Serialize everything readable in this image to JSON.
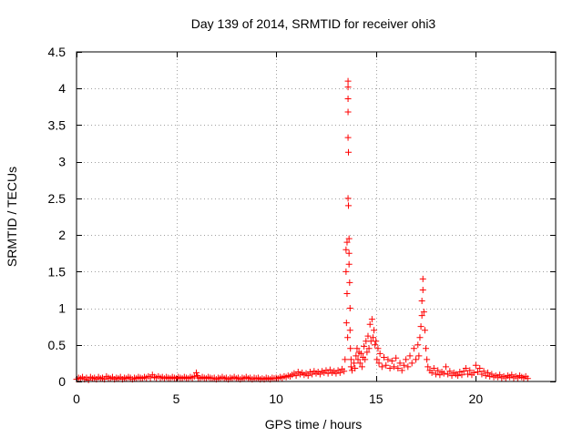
{
  "chart_data": {
    "type": "scatter",
    "title": "Day 139 of 2014, SRMTID for receiver ohi3",
    "xlabel": "GPS time / hours",
    "ylabel": "SRMTID / TECUs",
    "xlim": [
      0,
      24
    ],
    "ylim": [
      0,
      4.5
    ],
    "x_ticks": [
      0,
      5,
      10,
      15,
      20
    ],
    "x_tick_labels": [
      "0",
      "5",
      "10",
      "15",
      "20"
    ],
    "y_ticks": [
      0,
      0.5,
      1,
      1.5,
      2,
      2.5,
      3,
      3.5,
      4,
      4.5
    ],
    "y_tick_labels": [
      "0",
      "0.5",
      "1",
      "1.5",
      "2",
      "2.5",
      "3",
      "3.5",
      "4",
      "4.5"
    ],
    "grid": true,
    "marker": "+",
    "series_color": "#ff0000",
    "series": [
      {
        "name": "SRMTID",
        "points": [
          [
            0.0,
            0.03
          ],
          [
            0.1,
            0.05
          ],
          [
            0.2,
            0.04
          ],
          [
            0.3,
            0.06
          ],
          [
            0.4,
            0.03
          ],
          [
            0.5,
            0.05
          ],
          [
            0.6,
            0.02
          ],
          [
            0.7,
            0.06
          ],
          [
            0.8,
            0.04
          ],
          [
            0.9,
            0.05
          ],
          [
            1.0,
            0.03
          ],
          [
            1.1,
            0.06
          ],
          [
            1.2,
            0.04
          ],
          [
            1.3,
            0.05
          ],
          [
            1.4,
            0.03
          ],
          [
            1.5,
            0.07
          ],
          [
            1.6,
            0.05
          ],
          [
            1.7,
            0.04
          ],
          [
            1.8,
            0.06
          ],
          [
            1.9,
            0.03
          ],
          [
            2.0,
            0.05
          ],
          [
            2.1,
            0.04
          ],
          [
            2.2,
            0.06
          ],
          [
            2.3,
            0.03
          ],
          [
            2.4,
            0.05
          ],
          [
            2.5,
            0.04
          ],
          [
            2.6,
            0.06
          ],
          [
            2.7,
            0.05
          ],
          [
            2.8,
            0.03
          ],
          [
            2.9,
            0.05
          ],
          [
            3.0,
            0.04
          ],
          [
            3.1,
            0.06
          ],
          [
            3.2,
            0.05
          ],
          [
            3.3,
            0.04
          ],
          [
            3.4,
            0.06
          ],
          [
            3.5,
            0.05
          ],
          [
            3.6,
            0.07
          ],
          [
            3.7,
            0.05
          ],
          [
            3.8,
            0.09
          ],
          [
            3.9,
            0.06
          ],
          [
            4.0,
            0.05
          ],
          [
            4.1,
            0.07
          ],
          [
            4.2,
            0.05
          ],
          [
            4.3,
            0.06
          ],
          [
            4.4,
            0.04
          ],
          [
            4.5,
            0.06
          ],
          [
            4.6,
            0.05
          ],
          [
            4.7,
            0.04
          ],
          [
            4.8,
            0.06
          ],
          [
            4.9,
            0.05
          ],
          [
            5.0,
            0.04
          ],
          [
            5.1,
            0.06
          ],
          [
            5.2,
            0.05
          ],
          [
            5.3,
            0.04
          ],
          [
            5.4,
            0.06
          ],
          [
            5.5,
            0.05
          ],
          [
            5.6,
            0.04
          ],
          [
            5.7,
            0.06
          ],
          [
            5.8,
            0.05
          ],
          [
            5.9,
            0.07
          ],
          [
            6.0,
            0.12
          ],
          [
            6.05,
            0.08
          ],
          [
            6.1,
            0.05
          ],
          [
            6.2,
            0.04
          ],
          [
            6.3,
            0.06
          ],
          [
            6.4,
            0.05
          ],
          [
            6.5,
            0.04
          ],
          [
            6.6,
            0.06
          ],
          [
            6.7,
            0.05
          ],
          [
            6.8,
            0.04
          ],
          [
            6.9,
            0.05
          ],
          [
            7.0,
            0.03
          ],
          [
            7.1,
            0.05
          ],
          [
            7.2,
            0.04
          ],
          [
            7.3,
            0.06
          ],
          [
            7.4,
            0.04
          ],
          [
            7.5,
            0.05
          ],
          [
            7.6,
            0.03
          ],
          [
            7.7,
            0.05
          ],
          [
            7.8,
            0.04
          ],
          [
            7.9,
            0.06
          ],
          [
            8.0,
            0.04
          ],
          [
            8.1,
            0.05
          ],
          [
            8.2,
            0.03
          ],
          [
            8.3,
            0.05
          ],
          [
            8.4,
            0.04
          ],
          [
            8.5,
            0.06
          ],
          [
            8.6,
            0.04
          ],
          [
            8.7,
            0.05
          ],
          [
            8.8,
            0.03
          ],
          [
            8.9,
            0.05
          ],
          [
            9.0,
            0.04
          ],
          [
            9.1,
            0.05
          ],
          [
            9.2,
            0.03
          ],
          [
            9.3,
            0.04
          ],
          [
            9.4,
            0.03
          ],
          [
            9.5,
            0.05
          ],
          [
            9.6,
            0.04
          ],
          [
            9.7,
            0.03
          ],
          [
            9.8,
            0.05
          ],
          [
            9.9,
            0.04
          ],
          [
            10.0,
            0.05
          ],
          [
            10.1,
            0.04
          ],
          [
            10.2,
            0.06
          ],
          [
            10.3,
            0.05
          ],
          [
            10.4,
            0.07
          ],
          [
            10.5,
            0.06
          ],
          [
            10.6,
            0.08
          ],
          [
            10.7,
            0.07
          ],
          [
            10.8,
            0.09
          ],
          [
            10.9,
            0.11
          ],
          [
            11.0,
            0.08
          ],
          [
            11.1,
            0.13
          ],
          [
            11.2,
            0.1
          ],
          [
            11.3,
            0.12
          ],
          [
            11.4,
            0.09
          ],
          [
            11.5,
            0.11
          ],
          [
            11.6,
            0.08
          ],
          [
            11.7,
            0.13
          ],
          [
            11.8,
            0.1
          ],
          [
            11.9,
            0.14
          ],
          [
            12.0,
            0.11
          ],
          [
            12.1,
            0.13
          ],
          [
            12.2,
            0.1
          ],
          [
            12.3,
            0.14
          ],
          [
            12.4,
            0.12
          ],
          [
            12.5,
            0.15
          ],
          [
            12.6,
            0.11
          ],
          [
            12.7,
            0.16
          ],
          [
            12.8,
            0.12
          ],
          [
            12.9,
            0.14
          ],
          [
            13.0,
            0.11
          ],
          [
            13.1,
            0.15
          ],
          [
            13.2,
            0.12
          ],
          [
            13.3,
            0.17
          ],
          [
            13.4,
            0.14
          ],
          [
            13.45,
            0.3
          ],
          [
            13.5,
            1.8
          ],
          [
            13.5,
            1.5
          ],
          [
            13.52,
            0.8
          ],
          [
            13.55,
            1.9
          ],
          [
            13.55,
            1.2
          ],
          [
            13.58,
            0.6
          ],
          [
            13.6,
            4.1
          ],
          [
            13.6,
            4.02
          ],
          [
            13.6,
            3.86
          ],
          [
            13.6,
            3.68
          ],
          [
            13.6,
            3.33
          ],
          [
            13.62,
            3.13
          ],
          [
            13.6,
            2.5
          ],
          [
            13.62,
            2.4
          ],
          [
            13.65,
            1.95
          ],
          [
            13.65,
            1.75
          ],
          [
            13.65,
            1.6
          ],
          [
            13.68,
            1.35
          ],
          [
            13.7,
            1.0
          ],
          [
            13.7,
            0.7
          ],
          [
            13.72,
            0.45
          ],
          [
            13.75,
            0.3
          ],
          [
            13.75,
            0.2
          ],
          [
            13.8,
            0.15
          ],
          [
            13.9,
            0.25
          ],
          [
            13.95,
            0.18
          ],
          [
            14.0,
            0.35
          ],
          [
            14.05,
            0.45
          ],
          [
            14.1,
            0.3
          ],
          [
            14.15,
            0.4
          ],
          [
            14.2,
            0.25
          ],
          [
            14.25,
            0.38
          ],
          [
            14.3,
            0.2
          ],
          [
            14.35,
            0.33
          ],
          [
            14.4,
            0.48
          ],
          [
            14.45,
            0.3
          ],
          [
            14.5,
            0.55
          ],
          [
            14.55,
            0.4
          ],
          [
            14.6,
            0.62
          ],
          [
            14.65,
            0.45
          ],
          [
            14.7,
            0.78
          ],
          [
            14.75,
            0.55
          ],
          [
            14.8,
            0.85
          ],
          [
            14.85,
            0.6
          ],
          [
            14.9,
            0.7
          ],
          [
            14.95,
            0.5
          ],
          [
            15.0,
            0.55
          ],
          [
            15.05,
            0.3
          ],
          [
            15.1,
            0.45
          ],
          [
            15.15,
            0.25
          ],
          [
            15.2,
            0.38
          ],
          [
            15.3,
            0.2
          ],
          [
            15.4,
            0.33
          ],
          [
            15.5,
            0.22
          ],
          [
            15.6,
            0.3
          ],
          [
            15.7,
            0.18
          ],
          [
            15.8,
            0.28
          ],
          [
            15.9,
            0.2
          ],
          [
            16.0,
            0.32
          ],
          [
            16.1,
            0.18
          ],
          [
            16.2,
            0.25
          ],
          [
            16.3,
            0.15
          ],
          [
            16.4,
            0.22
          ],
          [
            16.5,
            0.3
          ],
          [
            16.6,
            0.2
          ],
          [
            16.7,
            0.35
          ],
          [
            16.8,
            0.25
          ],
          [
            16.9,
            0.45
          ],
          [
            17.0,
            0.3
          ],
          [
            17.1,
            0.5
          ],
          [
            17.15,
            0.35
          ],
          [
            17.2,
            0.6
          ],
          [
            17.25,
            0.75
          ],
          [
            17.3,
            0.9
          ],
          [
            17.3,
            1.1
          ],
          [
            17.35,
            1.25
          ],
          [
            17.35,
            1.4
          ],
          [
            17.4,
            0.95
          ],
          [
            17.45,
            0.7
          ],
          [
            17.5,
            0.45
          ],
          [
            17.55,
            0.3
          ],
          [
            17.6,
            0.2
          ],
          [
            17.7,
            0.15
          ],
          [
            17.8,
            0.12
          ],
          [
            17.9,
            0.18
          ],
          [
            18.0,
            0.1
          ],
          [
            18.1,
            0.15
          ],
          [
            18.2,
            0.09
          ],
          [
            18.3,
            0.13
          ],
          [
            18.4,
            0.11
          ],
          [
            18.5,
            0.2
          ],
          [
            18.6,
            0.1
          ],
          [
            18.7,
            0.14
          ],
          [
            18.8,
            0.08
          ],
          [
            18.9,
            0.12
          ],
          [
            19.0,
            0.1
          ],
          [
            19.1,
            0.08
          ],
          [
            19.2,
            0.13
          ],
          [
            19.3,
            0.09
          ],
          [
            19.4,
            0.14
          ],
          [
            19.5,
            0.18
          ],
          [
            19.6,
            0.1
          ],
          [
            19.7,
            0.15
          ],
          [
            19.8,
            0.09
          ],
          [
            19.9,
            0.12
          ],
          [
            20.0,
            0.22
          ],
          [
            20.1,
            0.13
          ],
          [
            20.2,
            0.18
          ],
          [
            20.3,
            0.1
          ],
          [
            20.4,
            0.14
          ],
          [
            20.5,
            0.08
          ],
          [
            20.6,
            0.12
          ],
          [
            20.7,
            0.07
          ],
          [
            20.8,
            0.1
          ],
          [
            20.9,
            0.06
          ],
          [
            21.0,
            0.08
          ],
          [
            21.1,
            0.06
          ],
          [
            21.2,
            0.09
          ],
          [
            21.3,
            0.05
          ],
          [
            21.4,
            0.07
          ],
          [
            21.5,
            0.05
          ],
          [
            21.6,
            0.08
          ],
          [
            21.7,
            0.06
          ],
          [
            21.8,
            0.09
          ],
          [
            21.9,
            0.05
          ],
          [
            22.0,
            0.07
          ],
          [
            22.1,
            0.05
          ],
          [
            22.2,
            0.08
          ],
          [
            22.3,
            0.06
          ],
          [
            22.4,
            0.05
          ],
          [
            22.5,
            0.07
          ],
          [
            22.6,
            0.04
          ]
        ]
      }
    ]
  }
}
